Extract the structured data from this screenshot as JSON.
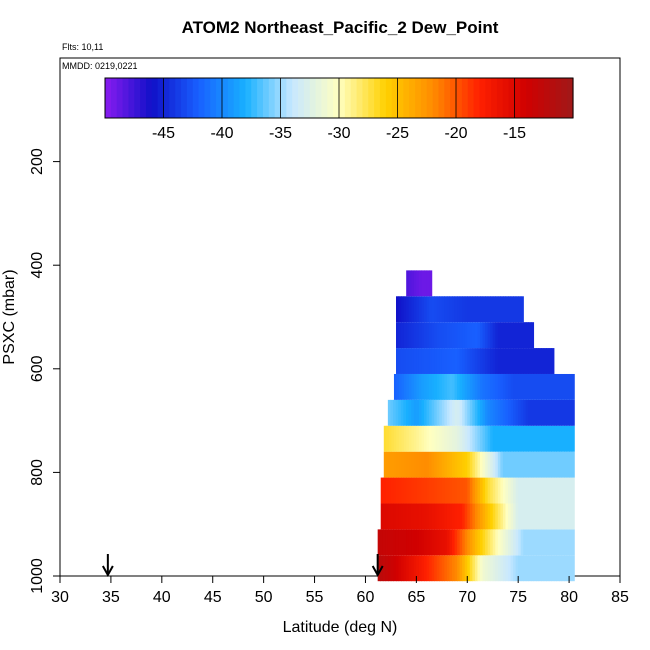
{
  "title": "ATOM2 Northeast_Pacific_2 Dew_Point",
  "flights_label": "Flts: 10,11",
  "dates_label": "MMDD: 0219,0221",
  "chart_data": {
    "type": "heatmap",
    "title": "ATOM2 Northeast_Pacific_2 Dew_Point",
    "xlabel": "Latitude (deg N)",
    "ylabel": "PSXC (mbar)",
    "xlim": [
      30,
      85
    ],
    "ylim": [
      1000,
      0
    ],
    "x_ticks": [
      30,
      35,
      40,
      45,
      50,
      55,
      60,
      65,
      70,
      75,
      80,
      85
    ],
    "y_ticks": [
      200,
      400,
      600,
      800,
      1000
    ],
    "colorbar": {
      "range": [
        -50,
        -10
      ],
      "ticks": [
        -45,
        -40,
        -35,
        -30,
        -25,
        -20,
        -15
      ],
      "colors": [
        "#8a1cf0",
        "#1010c8",
        "#1860ff",
        "#18b0ff",
        "#c8e8ff",
        "#ffffc0",
        "#ffd000",
        "#ff8c00",
        "#ff2000",
        "#d00000",
        "#a01818"
      ]
    },
    "flight_markers_lat": [
      34.7,
      61.2
    ],
    "rows": [
      {
        "p": 985,
        "segments": [
          [
            61.2,
            -12
          ],
          [
            63.0,
            -14
          ],
          [
            66.0,
            -18
          ],
          [
            69.0,
            -22
          ],
          [
            71.5,
            -31
          ],
          [
            75.0,
            -35
          ],
          [
            80.5,
            null
          ]
        ]
      },
      {
        "p": 935,
        "segments": [
          [
            61.2,
            -13
          ],
          [
            65.0,
            -14
          ],
          [
            68.0,
            -16
          ],
          [
            71.0,
            -25
          ],
          [
            73.0,
            -30
          ],
          [
            75.5,
            -35
          ],
          [
            80.5,
            null
          ]
        ]
      },
      {
        "p": 885,
        "segments": [
          [
            61.5,
            -15
          ],
          [
            66.0,
            -16
          ],
          [
            69.5,
            -18
          ],
          [
            72.0,
            -25
          ],
          [
            75.0,
            -33
          ],
          [
            80.5,
            null
          ]
        ]
      },
      {
        "p": 835,
        "segments": [
          [
            61.5,
            -18
          ],
          [
            66.0,
            -19
          ],
          [
            70.0,
            -20
          ],
          [
            72.0,
            -27
          ],
          [
            75.0,
            -33
          ],
          [
            80.5,
            null
          ]
        ]
      },
      {
        "p": 785,
        "segments": [
          [
            61.8,
            -23
          ],
          [
            66.0,
            -22
          ],
          [
            70.0,
            -26
          ],
          [
            73.5,
            -36
          ],
          [
            80.5,
            null
          ]
        ]
      },
      {
        "p": 735,
        "segments": [
          [
            61.8,
            -27
          ],
          [
            65.0,
            -29
          ],
          [
            69.0,
            -32
          ],
          [
            72.5,
            -38
          ],
          [
            80.5,
            null
          ]
        ]
      },
      {
        "p": 685,
        "segments": [
          [
            62.2,
            -36
          ],
          [
            65.0,
            -39
          ],
          [
            69.0,
            -33
          ],
          [
            72.0,
            -40
          ],
          [
            76.0,
            -44
          ],
          [
            80.5,
            null
          ]
        ]
      },
      {
        "p": 635,
        "segments": [
          [
            62.8,
            -42
          ],
          [
            65.5,
            -39
          ],
          [
            68.5,
            -37
          ],
          [
            71.5,
            -41
          ],
          [
            74.5,
            -43
          ],
          [
            80.5,
            null
          ]
        ]
      },
      {
        "p": 585,
        "segments": [
          [
            63.0,
            -43
          ],
          [
            69.0,
            -42
          ],
          [
            73.0,
            -45
          ],
          [
            78.5,
            null
          ]
        ]
      },
      {
        "p": 535,
        "segments": [
          [
            63.0,
            -45
          ],
          [
            67.0,
            -43
          ],
          [
            71.0,
            -42
          ],
          [
            73.0,
            -45
          ],
          [
            76.5,
            null
          ]
        ]
      },
      {
        "p": 485,
        "segments": [
          [
            63.0,
            -46
          ],
          [
            66.5,
            -43
          ],
          [
            70.0,
            -44
          ],
          [
            75.5,
            null
          ]
        ]
      },
      {
        "p": 435,
        "segments": [
          [
            64.0,
            -48
          ],
          [
            65.5,
            -49
          ],
          [
            66.5,
            null
          ]
        ]
      }
    ]
  }
}
